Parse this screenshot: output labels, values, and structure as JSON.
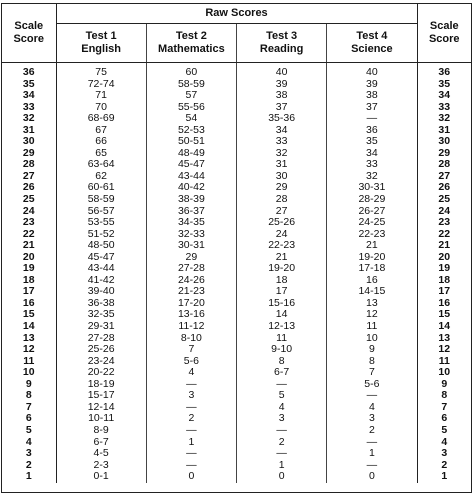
{
  "header": {
    "raw_scores": "Raw Scores",
    "scale_score": [
      "Scale",
      "Score"
    ],
    "tests": [
      {
        "line1": "Test 1",
        "line2": "English"
      },
      {
        "line1": "Test 2",
        "line2": "Mathematics"
      },
      {
        "line1": "Test 3",
        "line2": "Reading"
      },
      {
        "line1": "Test 4",
        "line2": "Science"
      }
    ]
  },
  "rows": [
    [
      "36",
      "75",
      "60",
      "40",
      "40",
      "36"
    ],
    [
      "35",
      "72-74",
      "58-59",
      "39",
      "39",
      "35"
    ],
    [
      "34",
      "71",
      "57",
      "38",
      "38",
      "34"
    ],
    [
      "33",
      "70",
      "55-56",
      "37",
      "37",
      "33"
    ],
    [
      "32",
      "68-69",
      "54",
      "35-36",
      "—",
      "32"
    ],
    [
      "31",
      "67",
      "52-53",
      "34",
      "36",
      "31"
    ],
    [
      "30",
      "66",
      "50-51",
      "33",
      "35",
      "30"
    ],
    [
      "29",
      "65",
      "48-49",
      "32",
      "34",
      "29"
    ],
    [
      "28",
      "63-64",
      "45-47",
      "31",
      "33",
      "28"
    ],
    [
      "27",
      "62",
      "43-44",
      "30",
      "32",
      "27"
    ],
    [
      "26",
      "60-61",
      "40-42",
      "29",
      "30-31",
      "26"
    ],
    [
      "25",
      "58-59",
      "38-39",
      "28",
      "28-29",
      "25"
    ],
    [
      "24",
      "56-57",
      "36-37",
      "27",
      "26-27",
      "24"
    ],
    [
      "23",
      "53-55",
      "34-35",
      "25-26",
      "24-25",
      "23"
    ],
    [
      "22",
      "51-52",
      "32-33",
      "24",
      "22-23",
      "22"
    ],
    [
      "21",
      "48-50",
      "30-31",
      "22-23",
      "21",
      "21"
    ],
    [
      "20",
      "45-47",
      "29",
      "21",
      "19-20",
      "20"
    ],
    [
      "19",
      "43-44",
      "27-28",
      "19-20",
      "17-18",
      "19"
    ],
    [
      "18",
      "41-42",
      "24-26",
      "18",
      "16",
      "18"
    ],
    [
      "17",
      "39-40",
      "21-23",
      "17",
      "14-15",
      "17"
    ],
    [
      "16",
      "36-38",
      "17-20",
      "15-16",
      "13",
      "16"
    ],
    [
      "15",
      "32-35",
      "13-16",
      "14",
      "12",
      "15"
    ],
    [
      "14",
      "29-31",
      "11-12",
      "12-13",
      "11",
      "14"
    ],
    [
      "13",
      "27-28",
      "8-10",
      "11",
      "10",
      "13"
    ],
    [
      "12",
      "25-26",
      "7",
      "9-10",
      "9",
      "12"
    ],
    [
      "11",
      "23-24",
      "5-6",
      "8",
      "8",
      "11"
    ],
    [
      "10",
      "20-22",
      "4",
      "6-7",
      "7",
      "10"
    ],
    [
      "9",
      "18-19",
      "—",
      "—",
      "5-6",
      "9"
    ],
    [
      "8",
      "15-17",
      "3",
      "5",
      "—",
      "8"
    ],
    [
      "7",
      "12-14",
      "—",
      "4",
      "4",
      "7"
    ],
    [
      "6",
      "10-11",
      "2",
      "3",
      "3",
      "6"
    ],
    [
      "5",
      "8-9",
      "—",
      "—",
      "2",
      "5"
    ],
    [
      "4",
      "6-7",
      "1",
      "2",
      "—",
      "4"
    ],
    [
      "3",
      "4-5",
      "—",
      "—",
      "1",
      "3"
    ],
    [
      "2",
      "2-3",
      "—",
      "1",
      "—",
      "2"
    ],
    [
      "1",
      "0-1",
      "0",
      "0",
      "0",
      "1"
    ]
  ]
}
